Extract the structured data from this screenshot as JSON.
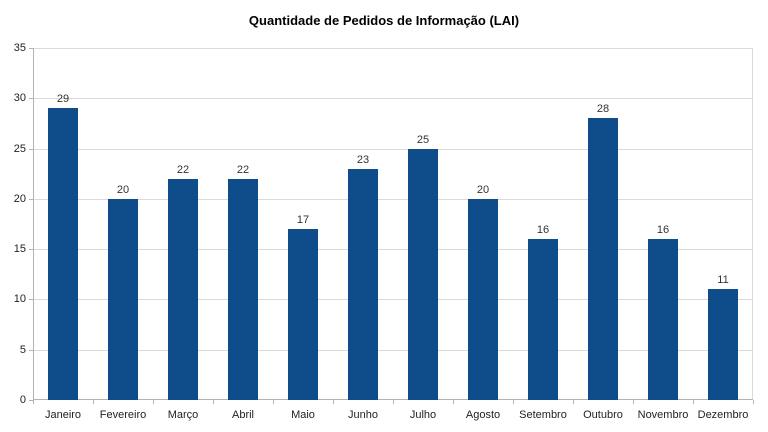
{
  "chart_data": {
    "type": "bar",
    "title": "Quantidade de Pedidos de Informação (LAI)",
    "categories": [
      "Janeiro",
      "Fevereiro",
      "Março",
      "Abril",
      "Maio",
      "Junho",
      "Julho",
      "Agosto",
      "Setembro",
      "Outubro",
      "Novembro",
      "Dezembro"
    ],
    "values": [
      29,
      20,
      22,
      22,
      17,
      23,
      25,
      20,
      16,
      28,
      16,
      11
    ],
    "xlabel": "",
    "ylabel": "",
    "ylim": [
      0,
      35
    ],
    "ytick_step": 5,
    "yticks": [
      0,
      5,
      10,
      15,
      20,
      25,
      30,
      35
    ],
    "grid": true,
    "legend_position": "none",
    "data_labels": true,
    "colors": {
      "bar": "#0e4c8a",
      "grid": "#dadada",
      "axis": "#b3b3b3",
      "value_label": "#333333",
      "tick_label": "#222222",
      "title": "#000000",
      "background": "#ffffff"
    }
  }
}
